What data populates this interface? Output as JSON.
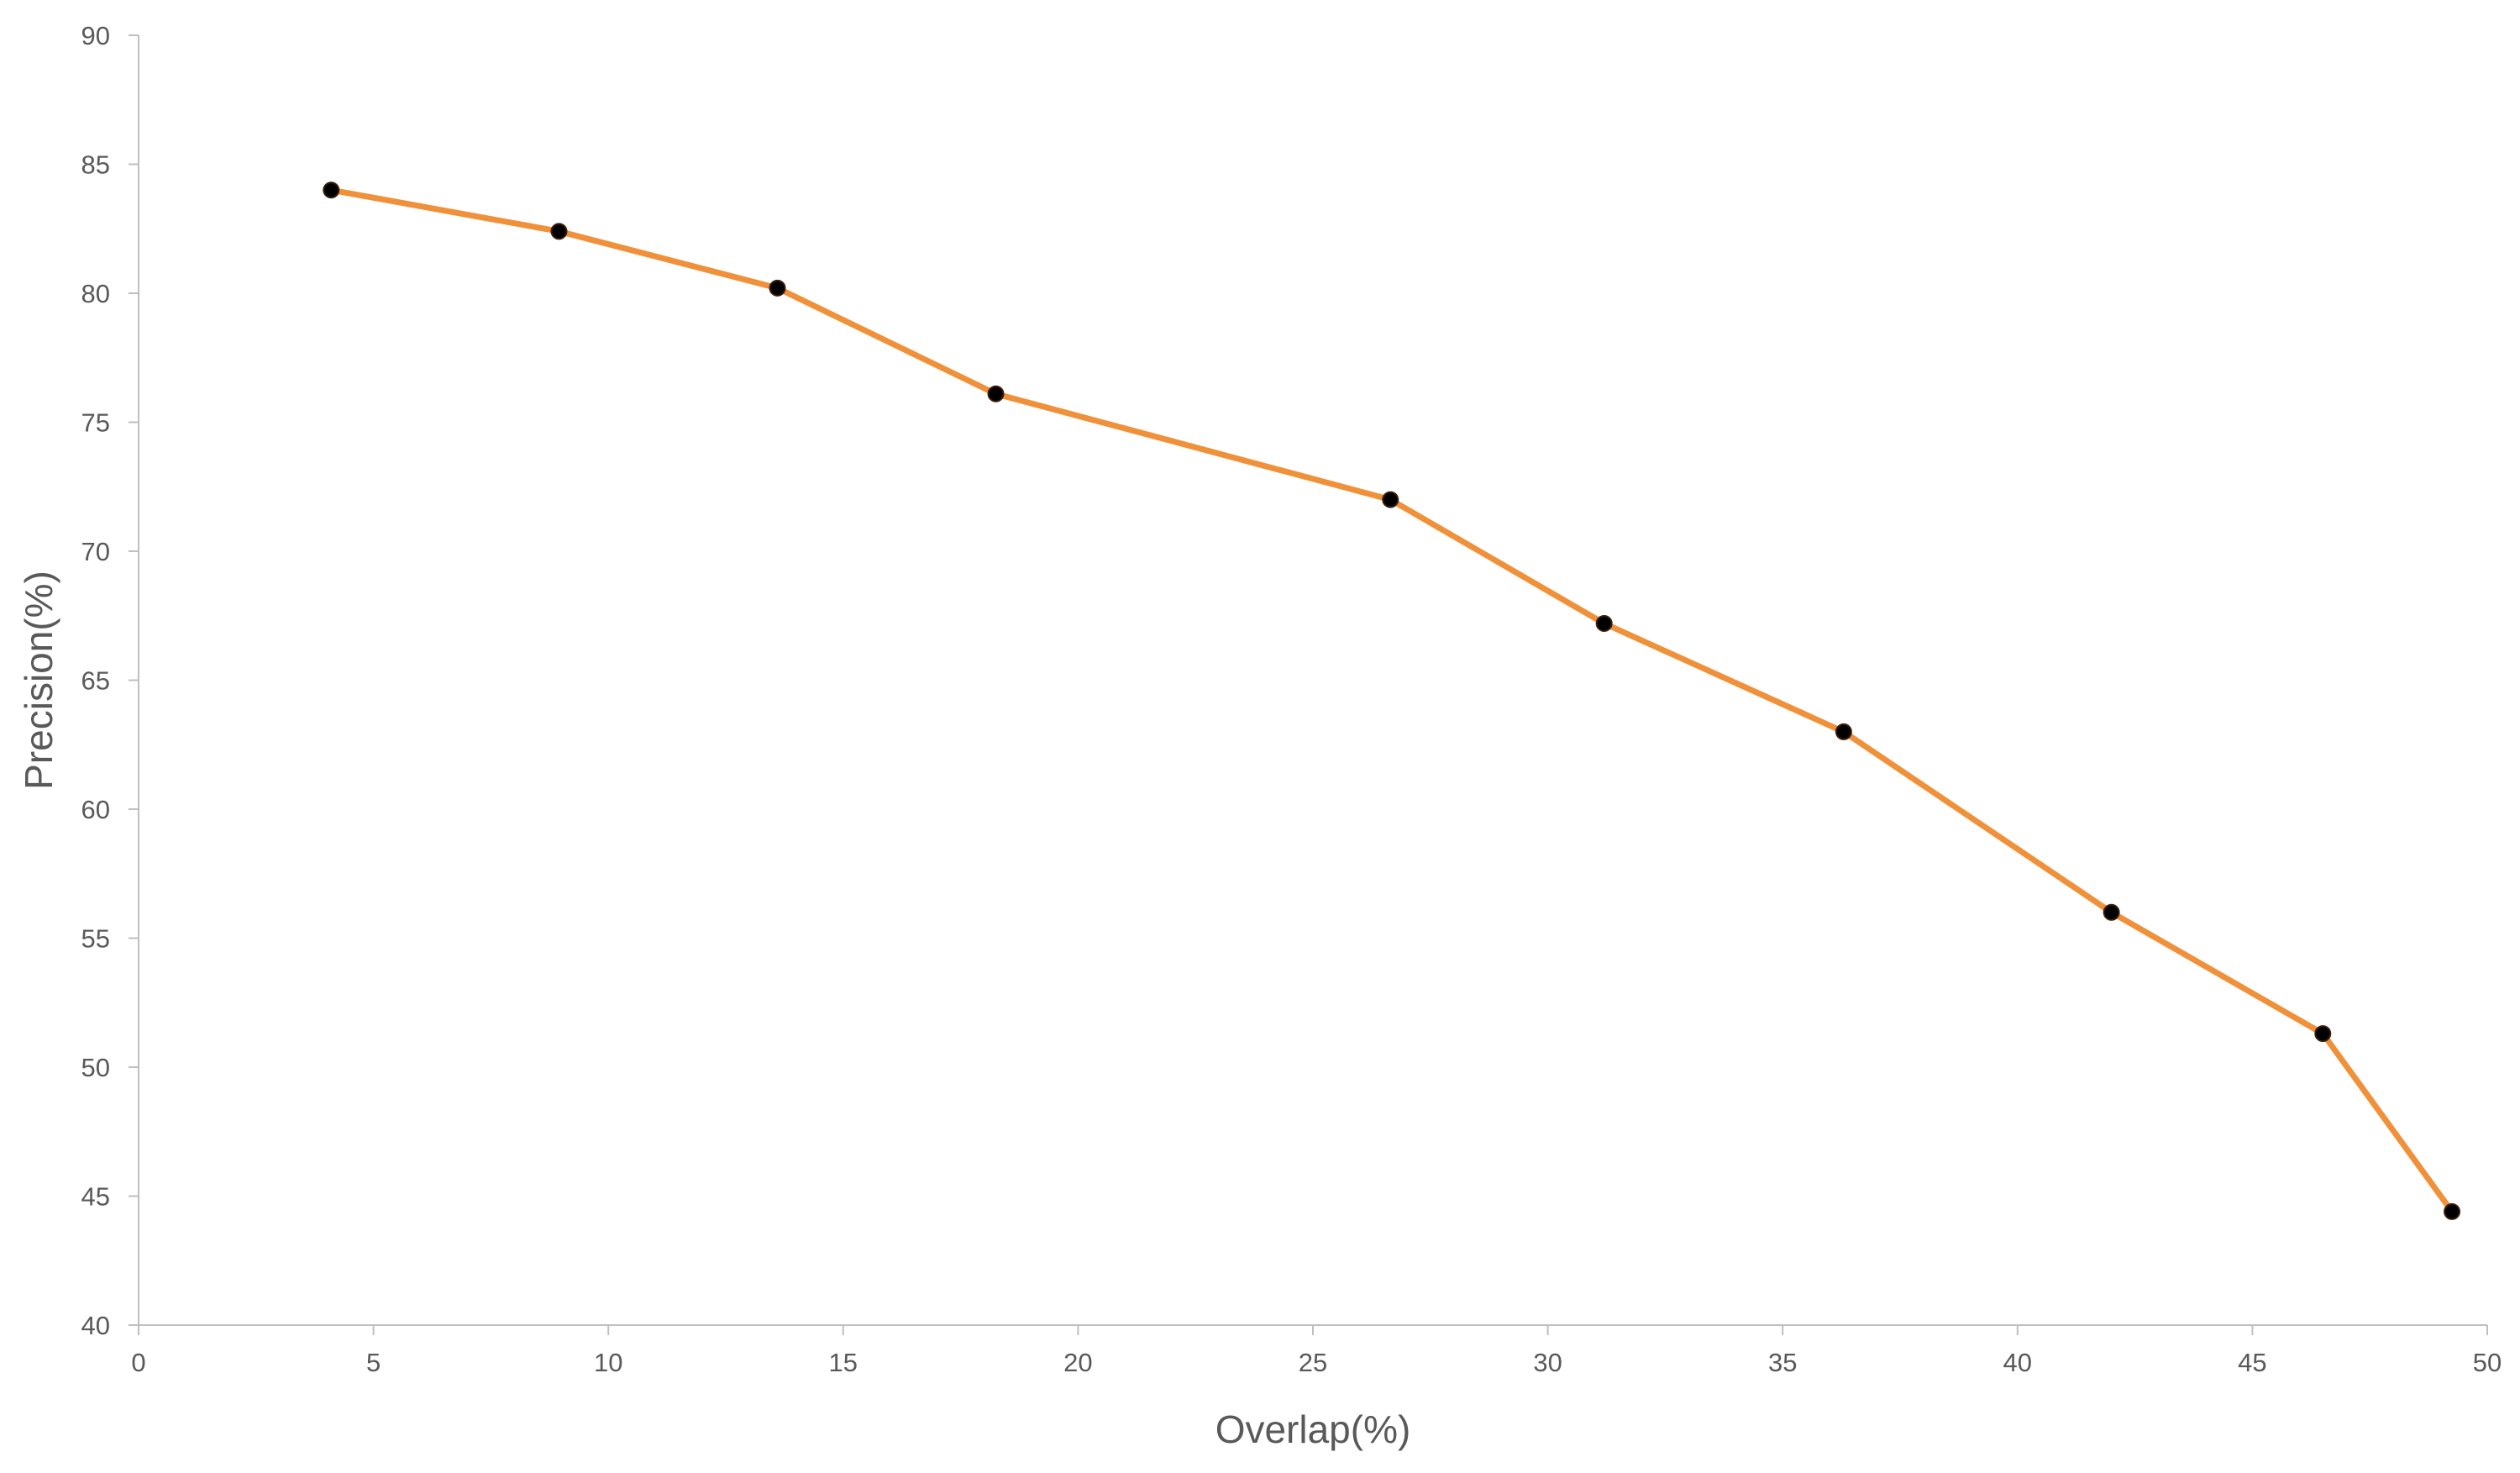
{
  "chart_data": {
    "type": "line",
    "title": "",
    "xlabel": "Overlap(%)",
    "ylabel": "Precision(%)",
    "xlim": [
      0,
      50
    ],
    "ylim": [
      40,
      90
    ],
    "xticks": [
      0,
      5,
      10,
      15,
      20,
      25,
      30,
      35,
      40,
      45,
      50
    ],
    "yticks": [
      40,
      45,
      50,
      55,
      60,
      65,
      70,
      75,
      80,
      85,
      90
    ],
    "grid": false,
    "legend": "none",
    "line_color": "#f0913a",
    "marker_color": "#000000",
    "series": [
      {
        "x": [
          4.1,
          8.95,
          13.6,
          18.25,
          26.65,
          31.2,
          36.3,
          42.0,
          46.5,
          49.25
        ],
        "y": [
          84.0,
          82.4,
          80.2,
          76.1,
          72.0,
          67.2,
          63.0,
          56.0,
          51.3,
          44.4
        ]
      }
    ]
  }
}
